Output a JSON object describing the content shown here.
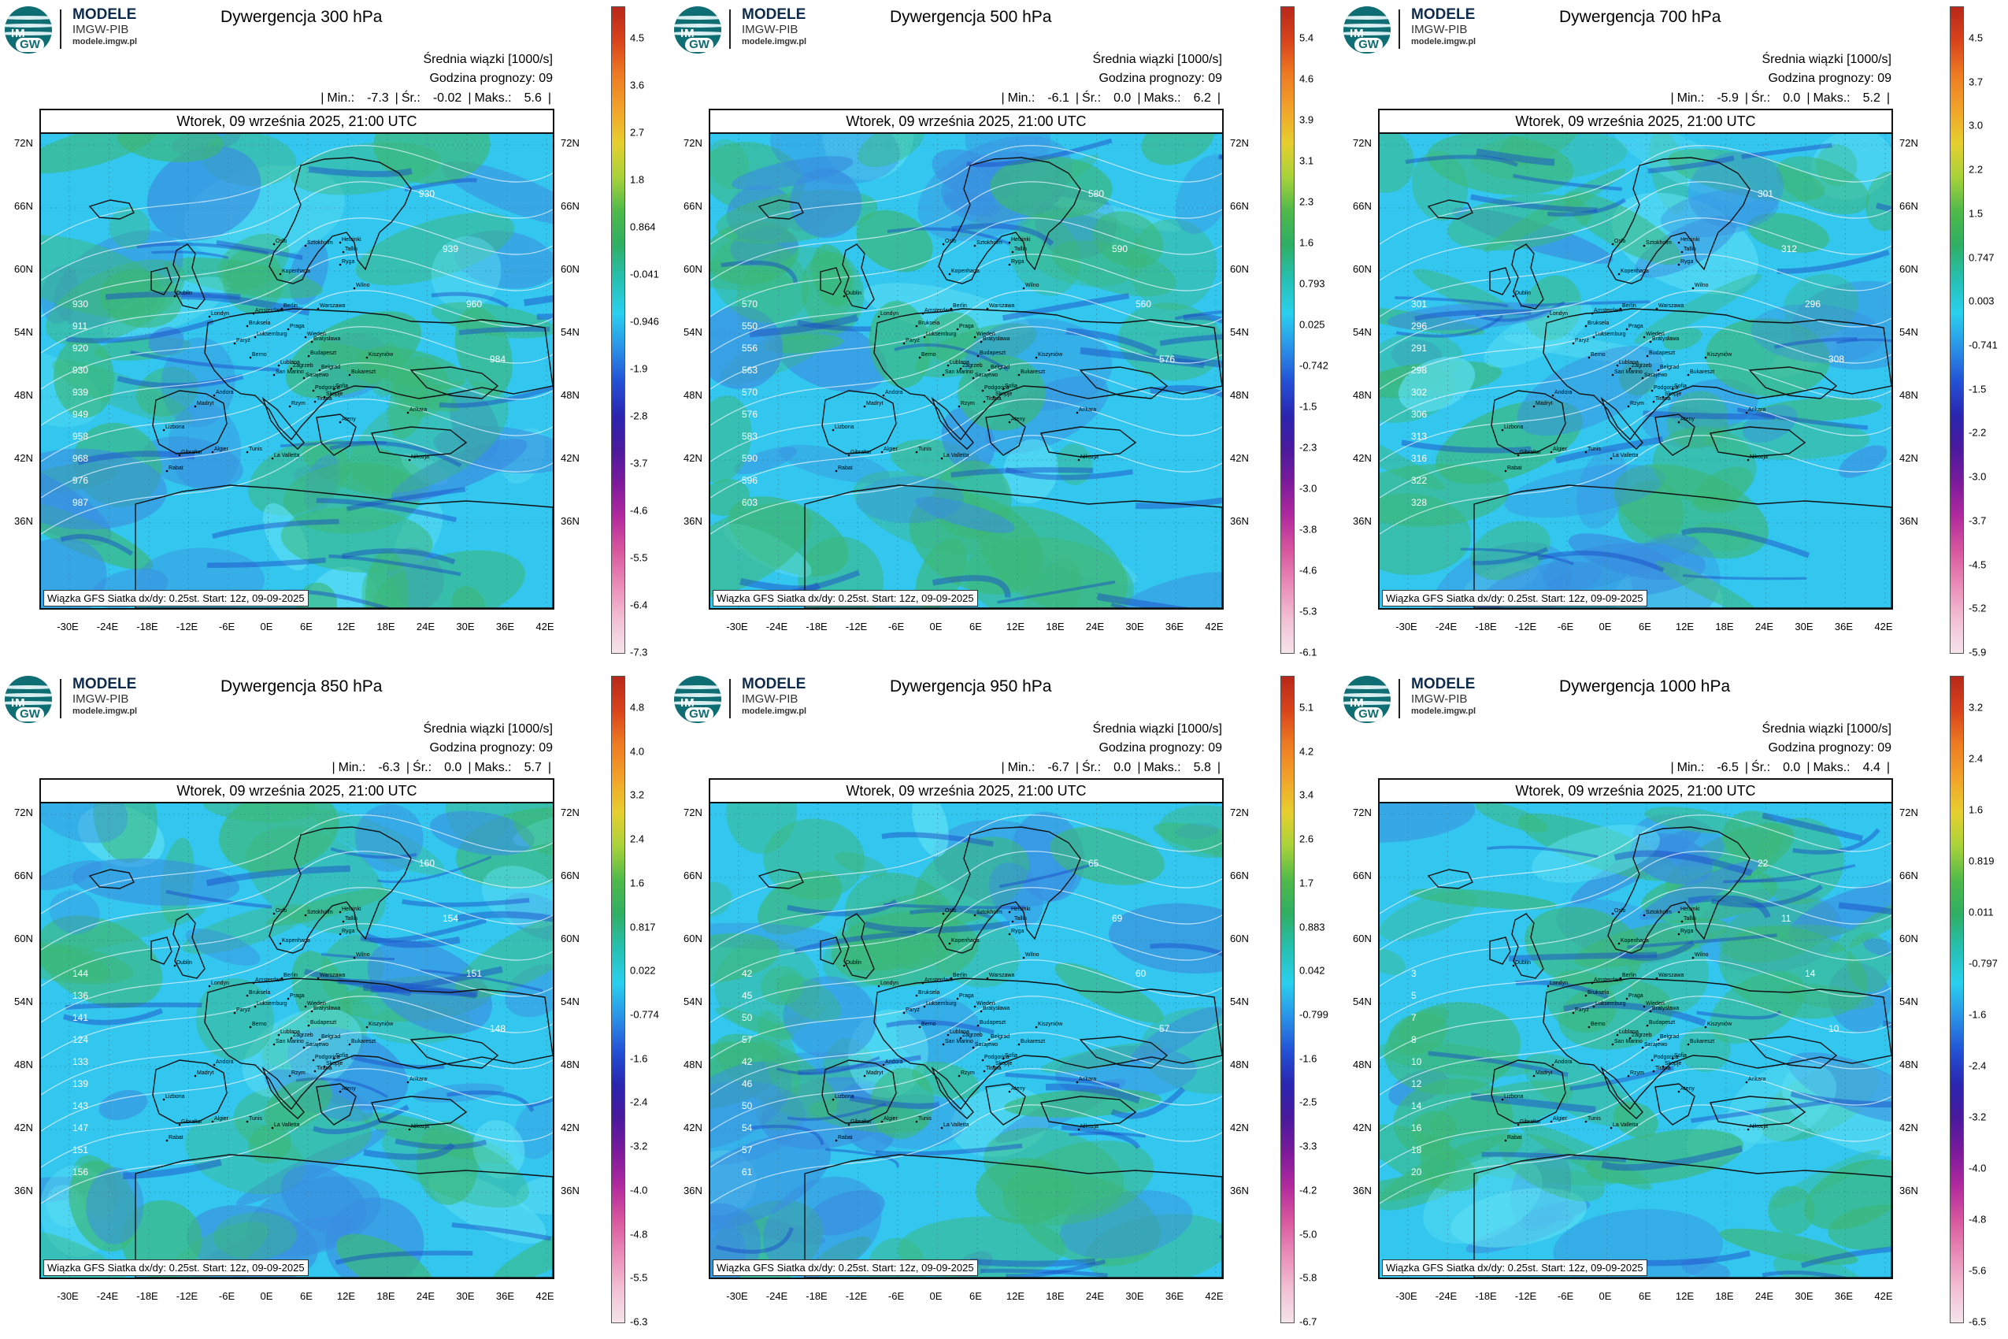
{
  "branding": {
    "logo_letters_top": "IM",
    "logo_letters_bottom": "GW",
    "brand": "MODELE",
    "org": "IMGW-PIB",
    "url": "modele.imgw.pl"
  },
  "common": {
    "mean_label": "Średnia wiązki [1000/s]",
    "hour_label": "Godzina prognozy: 09",
    "min_label": "Min.:",
    "avg_label": "Śr.:",
    "max_label": "Maks.:",
    "date_text": "Wtorek, 09 września 2025, 21:00 UTC",
    "credit": "Wiązka GFS Siatka dx/dy: 0.25st. Start: 12z, 09-09-2025",
    "lat_labels": [
      "72N",
      "66N",
      "60N",
      "54N",
      "48N",
      "42N",
      "36N"
    ],
    "lon_labels": [
      "-30E",
      "-24E",
      "-18E",
      "-12E",
      "-6E",
      "0E",
      "6E",
      "12E",
      "18E",
      "24E",
      "30E",
      "36E",
      "42E"
    ],
    "cities": [
      "Oslo",
      "Sztokholm",
      "Helsinki",
      "Tallin",
      "Ryga",
      "Wilno",
      "Kopenhaga",
      "Amsterdam",
      "Berlin",
      "Warszawa",
      "Bruksela",
      "Londyn",
      "Dublin",
      "Luksemburg",
      "Paryż",
      "Praga",
      "Wiedeń",
      "Bratysława",
      "Kiszyniów",
      "Berno",
      "Lublana",
      "Zagrzeb",
      "Budapeszt",
      "Belgrad",
      "Bukareszt",
      "Sarajewo",
      "San Marino",
      "Podgorica",
      "Sofia",
      "Skopje",
      "Tirana",
      "Rzym",
      "Andora",
      "Madryt",
      "Lizbona",
      "Ateny",
      "Ankara",
      "Gibraltar",
      "Algier",
      "Tunis",
      "La Valletta",
      "Rabat",
      "Nikozja"
    ],
    "colors": {
      "field_base": "#33c6ee",
      "field_green": "#3cb878",
      "field_blue": "#3a8ee0",
      "isoline": "#e8f4ff",
      "coast": "#111111"
    }
  },
  "panels": [
    {
      "title": "Dywergencja 300 hPa",
      "min": "-7.3",
      "avg": "-0.02",
      "max": "5.6",
      "colorbar_ticks": [
        "4.5",
        "3.6",
        "2.7",
        "1.8",
        "0.864",
        "-0.041",
        "-0.946",
        "-1.9",
        "-2.8",
        "-3.7",
        "-4.6",
        "-5.5",
        "-6.4",
        "-7.3"
      ],
      "isolines": [
        "930",
        "911",
        "920",
        "930",
        "939",
        "949",
        "958",
        "968",
        "976",
        "987",
        "930",
        "939",
        "960",
        "984"
      ]
    },
    {
      "title": "Dywergencja 500 hPa",
      "min": "-6.1",
      "avg": "0.0",
      "max": "6.2",
      "colorbar_ticks": [
        "5.4",
        "4.6",
        "3.9",
        "3.1",
        "2.3",
        "1.6",
        "0.793",
        "0.025",
        "-0.742",
        "-1.5",
        "-2.3",
        "-3.0",
        "-3.8",
        "-4.6",
        "-5.3",
        "-6.1"
      ],
      "isolines": [
        "570",
        "550",
        "556",
        "563",
        "570",
        "576",
        "583",
        "590",
        "596",
        "603",
        "580",
        "590",
        "560",
        "576"
      ]
    },
    {
      "title": "Dywergencja 700 hPa",
      "min": "-5.9",
      "avg": "0.0",
      "max": "5.2",
      "colorbar_ticks": [
        "4.5",
        "3.7",
        "3.0",
        "2.2",
        "1.5",
        "0.747",
        "0.003",
        "-0.741",
        "-1.5",
        "-2.2",
        "-3.0",
        "-3.7",
        "-4.5",
        "-5.2",
        "-5.9"
      ],
      "isolines": [
        "301",
        "296",
        "291",
        "298",
        "302",
        "306",
        "313",
        "316",
        "322",
        "328",
        "301",
        "312",
        "296",
        "308"
      ]
    },
    {
      "title": "Dywergencja 850 hPa",
      "min": "-6.3",
      "avg": "0.0",
      "max": "5.7",
      "colorbar_ticks": [
        "4.8",
        "4.0",
        "3.2",
        "2.4",
        "1.6",
        "0.817",
        "0.022",
        "-0.774",
        "-1.6",
        "-2.4",
        "-3.2",
        "-4.0",
        "-4.8",
        "-5.5",
        "-6.3"
      ],
      "isolines": [
        "144",
        "136",
        "141",
        "124",
        "133",
        "139",
        "143",
        "147",
        "151",
        "156",
        "160",
        "154",
        "151",
        "148"
      ]
    },
    {
      "title": "Dywergencja 950 hPa",
      "min": "-6.7",
      "avg": "0.0",
      "max": "5.8",
      "colorbar_ticks": [
        "5.1",
        "4.2",
        "3.4",
        "2.6",
        "1.7",
        "0.883",
        "0.042",
        "-0.799",
        "-1.6",
        "-2.5",
        "-3.3",
        "-4.2",
        "-5.0",
        "-5.8",
        "-6.7"
      ],
      "isolines": [
        "42",
        "45",
        "50",
        "57",
        "42",
        "46",
        "50",
        "54",
        "57",
        "61",
        "65",
        "69",
        "60",
        "57"
      ]
    },
    {
      "title": "Dywergencja 1000 hPa",
      "min": "-6.5",
      "avg": "0.0",
      "max": "4.4",
      "colorbar_ticks": [
        "3.2",
        "2.4",
        "1.6",
        "0.819",
        "0.011",
        "-0.797",
        "-1.6",
        "-2.4",
        "-3.2",
        "-4.0",
        "-4.8",
        "-5.6",
        "-6.5"
      ],
      "isolines": [
        "3",
        "5",
        "7",
        "8",
        "10",
        "12",
        "14",
        "16",
        "18",
        "20",
        "22",
        "11",
        "14",
        "10"
      ]
    }
  ]
}
